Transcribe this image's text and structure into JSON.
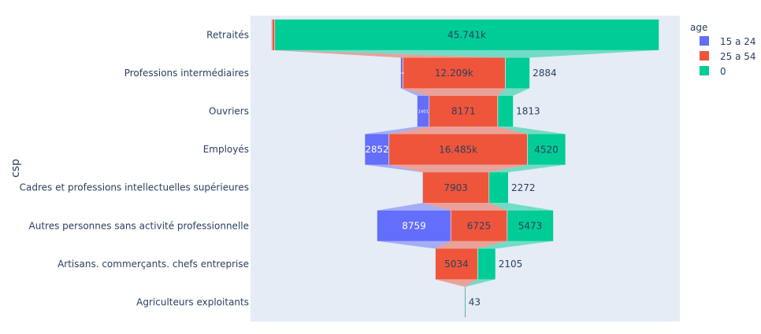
{
  "chart_data": {
    "type": "funnel",
    "ylabel": "csp",
    "legend_title": "age",
    "legend_position": "top-right",
    "plot_background": "#e5ecf6",
    "categories": [
      "Retraités",
      "Professions intermédiaires",
      "Ouvriers",
      "Employés",
      "Cadres et professions intellectuelles supérieures",
      "Autres personnes sans activité professionnelle",
      "Artisans. commerçants. chefs entreprise",
      "Agriculteurs exploitants"
    ],
    "series": [
      {
        "name": "15 a 24",
        "color": "#636efa",
        "values": [
          48,
          229,
          1401,
          2852,
          47,
          8759,
          32,
          0
        ],
        "labels": [
          "",
          "229",
          "1401",
          "2852",
          "",
          "8759",
          "",
          ""
        ]
      },
      {
        "name": "25 a 54",
        "color": "#ef553b",
        "values": [
          329,
          12209,
          8171,
          16485,
          7903,
          6725,
          5034,
          6
        ],
        "labels": [
          "",
          "12.209k",
          "8171",
          "16.485k",
          "7903",
          "6725",
          "5034",
          ""
        ]
      },
      {
        "name": "0",
        "color": "#00cc96",
        "values": [
          45741,
          2884,
          1813,
          4520,
          2272,
          5473,
          2105,
          43
        ],
        "labels": [
          "45.741k",
          "2884",
          "1813",
          "4520",
          "2272",
          "5473",
          "2105",
          "43"
        ]
      }
    ]
  }
}
